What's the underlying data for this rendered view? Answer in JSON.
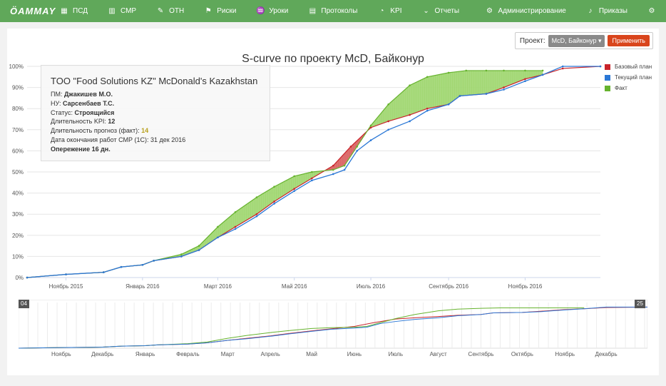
{
  "navbar": {
    "logo": "ÖAMMAY",
    "items": [
      {
        "icon": "briefcase-icon",
        "glyph": "▦",
        "label": "ПСД"
      },
      {
        "icon": "building-icon",
        "glyph": "▥",
        "label": "СМР"
      },
      {
        "icon": "hammer-icon",
        "glyph": "✎",
        "label": "ОТН"
      },
      {
        "icon": "flag-icon",
        "glyph": "⚑",
        "label": "Риски"
      },
      {
        "icon": "graduation-icon",
        "glyph": "♒",
        "label": "Уроки"
      },
      {
        "icon": "document-icon",
        "glyph": "▤",
        "label": "Протоколы"
      },
      {
        "icon": "dashboard-icon",
        "glyph": "◔",
        "label": "KPI"
      },
      {
        "icon": "chevron-down-icon",
        "glyph": "⌄",
        "label": "Отчеты"
      }
    ],
    "right_items": [
      {
        "icon": "gears-icon",
        "glyph": "⚙",
        "label": "Администрирование"
      },
      {
        "icon": "bell-icon",
        "glyph": "♪",
        "label": "Приказы"
      },
      {
        "icon": "gear-icon",
        "glyph": "⚙",
        "label": ""
      }
    ]
  },
  "project": {
    "label": "Проект:",
    "selected": "McD, Байконур ▾",
    "apply": "Применить"
  },
  "info": {
    "heading": "TOO \"Food Solutions KZ\" McDonald's Kazakhstan",
    "pm_label": "ПМ: ",
    "pm_value": "Джакишев М.О.",
    "nu_label": "НУ: ",
    "nu_value": "Сарсенбаев Т.С.",
    "status_label": "Статус: ",
    "status_value": "Строящийся",
    "kpi_label": "Длительность KPI: ",
    "kpi_value": "12",
    "forecast_label": "Длительность прогноз (факт): ",
    "forecast_value": "14",
    "end_label": "Дата окончания работ СМР (1С): ",
    "end_value": "31 дек 2016",
    "ahead": "Опережение 16 дн."
  },
  "nav_handles": {
    "left": "04",
    "right": "25"
  },
  "colors": {
    "base": "#c9242b",
    "current": "#2b78d6",
    "fact": "#66b32e",
    "fill_ahead": "#9fd66f",
    "fill_behind": "#d96060"
  },
  "chart_data": {
    "type": "line",
    "title": "S-curve по проекту McD, Байконур",
    "x_axis": "date",
    "x_range": [
      "2015-10-01",
      "2016-12-31"
    ],
    "ylim": [
      0,
      100
    ],
    "y_ticks": [
      "0%",
      "10%",
      "20%",
      "30%",
      "40%",
      "50%",
      "60%",
      "70%",
      "80%",
      "90%",
      "100%"
    ],
    "x_ticks": [
      {
        "x": "2015-11-01",
        "label": "Ноябрь 2015"
      },
      {
        "x": "2016-01-01",
        "label": "Январь 2016"
      },
      {
        "x": "2016-03-01",
        "label": "Март 2016"
      },
      {
        "x": "2016-05-01",
        "label": "Май 2016"
      },
      {
        "x": "2016-07-01",
        "label": "Июль 2016"
      },
      {
        "x": "2016-09-01",
        "label": "Сентябрь 2016"
      },
      {
        "x": "2016-11-01",
        "label": "Ноябрь 2016"
      }
    ],
    "legend": "top-right",
    "series": [
      {
        "name": "Базовый план",
        "key": "base",
        "points": [
          [
            "2015-10-01",
            0
          ],
          [
            "2015-11-01",
            1.5
          ],
          [
            "2015-12-01",
            2.5
          ],
          [
            "2015-12-15",
            5
          ],
          [
            "2016-01-01",
            6
          ],
          [
            "2016-01-10",
            8
          ],
          [
            "2016-02-01",
            10
          ],
          [
            "2016-02-15",
            13
          ],
          [
            "2016-03-01",
            19
          ],
          [
            "2016-03-15",
            24
          ],
          [
            "2016-04-01",
            30
          ],
          [
            "2016-04-15",
            36
          ],
          [
            "2016-05-01",
            42
          ],
          [
            "2016-05-15",
            47
          ],
          [
            "2016-06-01",
            53
          ],
          [
            "2016-06-15",
            62
          ],
          [
            "2016-07-01",
            71
          ],
          [
            "2016-07-15",
            74
          ],
          [
            "2016-08-01",
            77
          ],
          [
            "2016-08-15",
            80
          ],
          [
            "2016-09-01",
            82
          ],
          [
            "2016-09-10",
            86
          ],
          [
            "2016-10-01",
            87
          ],
          [
            "2016-10-15",
            90
          ],
          [
            "2016-11-01",
            94
          ],
          [
            "2016-11-15",
            96
          ],
          [
            "2016-12-01",
            99
          ],
          [
            "2016-12-31",
            100
          ]
        ]
      },
      {
        "name": "Текущий план",
        "key": "current",
        "points": [
          [
            "2015-10-01",
            0
          ],
          [
            "2015-11-01",
            1.5
          ],
          [
            "2015-12-01",
            2.5
          ],
          [
            "2015-12-15",
            5
          ],
          [
            "2016-01-01",
            6
          ],
          [
            "2016-01-10",
            8
          ],
          [
            "2016-02-01",
            10
          ],
          [
            "2016-02-15",
            13
          ],
          [
            "2016-03-01",
            19
          ],
          [
            "2016-03-15",
            23
          ],
          [
            "2016-04-01",
            29
          ],
          [
            "2016-04-15",
            35
          ],
          [
            "2016-05-01",
            41
          ],
          [
            "2016-05-15",
            46
          ],
          [
            "2016-06-01",
            49
          ],
          [
            "2016-06-10",
            51
          ],
          [
            "2016-06-20",
            60
          ],
          [
            "2016-07-01",
            65
          ],
          [
            "2016-07-15",
            70
          ],
          [
            "2016-08-01",
            74
          ],
          [
            "2016-08-15",
            79
          ],
          [
            "2016-09-01",
            82
          ],
          [
            "2016-09-10",
            86
          ],
          [
            "2016-10-01",
            87
          ],
          [
            "2016-10-15",
            89
          ],
          [
            "2016-11-01",
            93
          ],
          [
            "2016-11-15",
            96
          ],
          [
            "2016-12-01",
            100
          ],
          [
            "2016-12-31",
            100
          ]
        ]
      },
      {
        "name": "Факт",
        "key": "fact",
        "points": [
          [
            "2015-10-01",
            0
          ],
          [
            "2015-11-01",
            1.5
          ],
          [
            "2015-12-01",
            2.5
          ],
          [
            "2015-12-15",
            5
          ],
          [
            "2016-01-01",
            6
          ],
          [
            "2016-01-10",
            8
          ],
          [
            "2016-02-01",
            11
          ],
          [
            "2016-02-15",
            15
          ],
          [
            "2016-03-01",
            24
          ],
          [
            "2016-03-15",
            31
          ],
          [
            "2016-04-01",
            38
          ],
          [
            "2016-04-15",
            43
          ],
          [
            "2016-05-01",
            48
          ],
          [
            "2016-05-15",
            50
          ],
          [
            "2016-06-01",
            51
          ],
          [
            "2016-06-10",
            53
          ],
          [
            "2016-06-20",
            62
          ],
          [
            "2016-07-01",
            72
          ],
          [
            "2016-07-15",
            82
          ],
          [
            "2016-08-01",
            91
          ],
          [
            "2016-08-15",
            95
          ],
          [
            "2016-09-01",
            97
          ],
          [
            "2016-09-15",
            98
          ],
          [
            "2016-10-01",
            98
          ],
          [
            "2016-10-15",
            98
          ],
          [
            "2016-11-01",
            98
          ],
          [
            "2016-11-15",
            98
          ]
        ]
      }
    ],
    "navigator": {
      "x_range": [
        "2015-10-01",
        "2016-12-31"
      ],
      "ticks": [
        {
          "x": "2015-11-01",
          "label": "Ноябрь"
        },
        {
          "x": "2015-12-01",
          "label": "Декабрь"
        },
        {
          "x": "2016-01-01",
          "label": "Январь"
        },
        {
          "x": "2016-02-01",
          "label": "Февраль"
        },
        {
          "x": "2016-03-01",
          "label": "Март"
        },
        {
          "x": "2016-04-01",
          "label": "Апрель"
        },
        {
          "x": "2016-05-01",
          "label": "Май"
        },
        {
          "x": "2016-06-01",
          "label": "Июнь"
        },
        {
          "x": "2016-07-01",
          "label": "Июль"
        },
        {
          "x": "2016-08-01",
          "label": "Август"
        },
        {
          "x": "2016-09-01",
          "label": "Сентябрь"
        },
        {
          "x": "2016-10-01",
          "label": "Октябрь"
        },
        {
          "x": "2016-11-01",
          "label": "Ноябрь"
        },
        {
          "x": "2016-12-01",
          "label": "Декабрь"
        }
      ]
    }
  }
}
